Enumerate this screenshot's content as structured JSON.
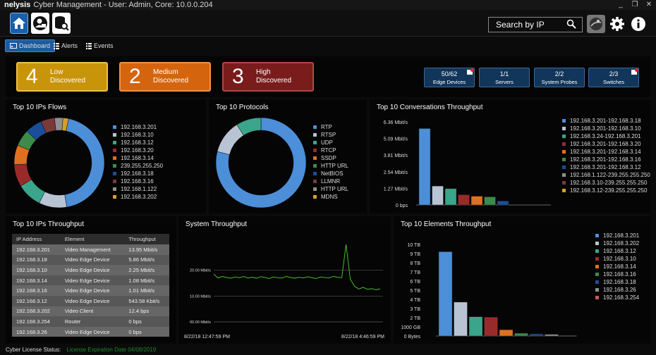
{
  "app": {
    "logo": "nelysis",
    "title": "Cyber Management - User: Admin, Core: 10.0.0.204",
    "win_min": "_",
    "win_max": "❐",
    "win_close": "✕"
  },
  "toolbar": {
    "search_label": "Search by IP",
    "icons": [
      "home-icon",
      "user-lock-icon",
      "database-search-icon",
      "map-icon",
      "gear-icon",
      "info-icon"
    ]
  },
  "tabs": [
    {
      "label": "Dashboard",
      "active": true
    },
    {
      "label": "Alerts",
      "active": false
    },
    {
      "label": "Events",
      "active": false
    }
  ],
  "severity": [
    {
      "count": "4",
      "line1": "Low",
      "line2": "Discovered",
      "color": "#c8940a"
    },
    {
      "count": "2",
      "line1": "Medium",
      "line2": "Discovered",
      "color": "#d4640e"
    },
    {
      "count": "3",
      "line1": "High",
      "line2": "Discovered",
      "color": "#7a1c1c"
    }
  ],
  "counters": [
    {
      "value": "50/62",
      "label": "Edge Devices",
      "alert": true
    },
    {
      "value": "1/1",
      "label": "Servers",
      "alert": false
    },
    {
      "value": "2/2",
      "label": "System Probes",
      "alert": false
    },
    {
      "value": "2/3",
      "label": "Switches",
      "alert": true
    }
  ],
  "panels": {
    "ip_flows": "Top 10 IPs Flows",
    "protocols": "Top 10 Protocols",
    "conversations": "Top 10 Conversations Throughput",
    "ips_throughput": "Top 10 IPs Throughput",
    "system_throughput": "System Throughput",
    "elements": "Top 10 Elements Throughput"
  },
  "ip_flows": {
    "labels": [
      "192.168.3.201",
      "192.168.3.10",
      "192.168.3.12",
      "192.168.3.20",
      "192.168.3.14",
      "239.255.255.250",
      "192.168.3.18",
      "192.168.3.16",
      "192.168.1.122",
      "192.168.3.202"
    ],
    "values": [
      44,
      10,
      9,
      8,
      7,
      6,
      6,
      5,
      3,
      2
    ],
    "colors": [
      "#4c8fd8",
      "#b8c4d4",
      "#3aa58a",
      "#9a2a2a",
      "#e07020",
      "#3e8a4a",
      "#1a4e9a",
      "#7a3a3a",
      "#909090",
      "#d8a020"
    ]
  },
  "protocols": {
    "labels": [
      "RTP",
      "RTSP",
      "UDP",
      "RTCP",
      "SSDP",
      "HTTP URL",
      "NetBIOS",
      "LLMNR",
      "HTTP URL",
      "MDNS"
    ],
    "values": [
      79,
      12,
      9,
      0,
      0,
      0,
      0,
      0,
      0,
      0
    ],
    "colors": [
      "#4c8fd8",
      "#b8c4d4",
      "#3aa58a",
      "#9a2a2a",
      "#e07020",
      "#3e8a4a",
      "#1a4e9a",
      "#7a3a3a",
      "#909090",
      "#d8a020"
    ]
  },
  "conversations": {
    "y_ticks": [
      "0 bps",
      "1.27 Mbit/s",
      "2.54 Mbit/s",
      "3.81 Mbit/s",
      "5.09 Mbit/s",
      "6.36 Mbit/s"
    ],
    "y_max": 6.36,
    "labels": [
      "192.168.3.201-192.168.3.18",
      "192.168.3.201-192.168.3.10",
      "192.168.3.24-192.168.3.201",
      "192.168.3.201-192.168.3.20",
      "192.168.3.201-192.168.3.14",
      "192.168.3.201-192.168.3.16",
      "192.168.3.201-192.168.3.12",
      "192.168.1.122-239.255.255.250",
      "192.168.3.10-239.255.255.250",
      "192.168.3.12-239.255.255.250"
    ],
    "values": [
      5.85,
      1.45,
      1.25,
      0.78,
      0.67,
      0.62,
      0.3,
      0,
      0,
      0
    ],
    "colors": [
      "#4c8fd8",
      "#b8c4d4",
      "#3aa58a",
      "#9a2a2a",
      "#e07020",
      "#3e8a4a",
      "#1a4e9a",
      "#909090",
      "#7a3a3a",
      "#d8a020"
    ]
  },
  "ip_table": {
    "headers": [
      "IP Address",
      "Element",
      "Throughput"
    ],
    "rows": [
      [
        "192.168.3.201",
        "Video Management",
        "13.95 Mbit/s"
      ],
      [
        "192.168.3.18",
        "Video Edge Device",
        "5.86 Mbit/s"
      ],
      [
        "192.168.3.10",
        "Video Edge Device",
        "2.25 Mbit/s"
      ],
      [
        "192.168.3.14",
        "Video Edge Device",
        "1.08 Mbit/s"
      ],
      [
        "192.168.3.16",
        "Video Edge Device",
        "1.01 Mbit/s"
      ],
      [
        "192.168.3.12",
        "Video Edge Device",
        "543.58 Kbit/s"
      ],
      [
        "192.168.3.202",
        "Video Client",
        "12.4 bps"
      ],
      [
        "192.168.3.254",
        "Router",
        "0 bps"
      ],
      [
        "192.168.3.26",
        "Video Edge Device",
        "0 bps"
      ]
    ]
  },
  "system_throughput": {
    "y_ticks": [
      "00.00 Mbit/s",
      "10.00 Mbit/s",
      "20.00 Mbit/s"
    ],
    "y_max": 30,
    "x_start": "8/22/18 12:47:59 PM",
    "x_end": "8/22/18 4:46:59 PM",
    "line_color": "#4ad22a"
  },
  "elements": {
    "y_ticks": [
      "0 Bytes",
      "1000 GB",
      "2 TB",
      "3 TB",
      "4 TB",
      "5 TB",
      "6 TB",
      "7 TB",
      "8 TB",
      "9 TB",
      "10 TB"
    ],
    "y_max": 10,
    "labels": [
      "192.168.3.201",
      "192.168.3.202",
      "192.168.3.12",
      "192.168.3.10",
      "192.168.3.14",
      "192.168.3.16",
      "192.168.3.18",
      "192.168.3.26",
      "192.168.3.254"
    ],
    "values": [
      9.2,
      3.7,
      2.1,
      2.05,
      0.68,
      0.3,
      0.22,
      0.18,
      0
    ],
    "colors": [
      "#4c8fd8",
      "#b8c4d4",
      "#3aa58a",
      "#9a2a2a",
      "#e07020",
      "#3e8a4a",
      "#1a4e9a",
      "#909090",
      "#c05a5a"
    ]
  },
  "status": {
    "label": "Cyber License Status:",
    "value": "License Expiration Date 04/08/2019"
  },
  "chart_data": [
    {
      "type": "pie",
      "title": "Top 10 IPs Flows",
      "categories": [
        "192.168.3.201",
        "192.168.3.10",
        "192.168.3.12",
        "192.168.3.20",
        "192.168.3.14",
        "239.255.255.250",
        "192.168.3.18",
        "192.168.3.16",
        "192.168.1.122",
        "192.168.3.202"
      ],
      "values": [
        44,
        10,
        9,
        8,
        7,
        6,
        6,
        5,
        3,
        2
      ]
    },
    {
      "type": "pie",
      "title": "Top 10 Protocols",
      "categories": [
        "RTP",
        "RTSP",
        "UDP",
        "RTCP",
        "SSDP",
        "HTTP URL",
        "NetBIOS",
        "LLMNR",
        "HTTP URL",
        "MDNS"
      ],
      "values": [
        79,
        12,
        9,
        0,
        0,
        0,
        0,
        0,
        0,
        0
      ]
    },
    {
      "type": "bar",
      "title": "Top 10 Conversations Throughput",
      "categories": [
        "192.168.3.201-192.168.3.18",
        "192.168.3.201-192.168.3.10",
        "192.168.3.24-192.168.3.201",
        "192.168.3.201-192.168.3.20",
        "192.168.3.201-192.168.3.14",
        "192.168.3.201-192.168.3.16",
        "192.168.3.201-192.168.3.12",
        "192.168.1.122-239.255.255.250",
        "192.168.3.10-239.255.255.250",
        "192.168.3.12-239.255.255.250"
      ],
      "values": [
        5.85,
        1.45,
        1.25,
        0.78,
        0.67,
        0.62,
        0.3,
        0,
        0,
        0
      ],
      "ylim": [
        0,
        6.36
      ]
    },
    {
      "type": "line",
      "title": "System Throughput",
      "x": [
        "8/22/18 12:47:59 PM",
        "",
        "",
        "",
        "",
        "",
        "",
        "",
        "",
        "",
        "",
        "",
        "",
        "",
        "",
        "",
        "",
        "",
        "",
        "",
        "",
        "",
        "",
        "",
        "",
        "",
        "",
        "",
        "",
        "",
        "",
        "",
        "",
        "",
        "",
        "",
        "",
        "",
        "",
        "8/22/18 4:46:59 PM"
      ],
      "values": [
        18.5,
        17.0,
        17.6,
        17.2,
        16.9,
        17.4,
        17.1,
        17.6,
        17.0,
        17.3,
        16.9,
        17.5,
        17.2,
        16.8,
        17.4,
        17.1,
        17.0,
        17.6,
        17.2,
        16.9,
        17.3,
        17.0,
        17.5,
        17.1,
        16.8,
        17.4,
        17.2,
        17.0,
        17.6,
        17.3,
        17.1,
        30.0,
        16.5,
        13.8,
        12.7,
        13.4,
        12.6,
        12.9,
        12.4,
        12.8
      ],
      "ylim": [
        0,
        30
      ]
    },
    {
      "type": "bar",
      "title": "Top 10 Elements Throughput",
      "categories": [
        "192.168.3.201",
        "192.168.3.202",
        "192.168.3.12",
        "192.168.3.10",
        "192.168.3.14",
        "192.168.3.16",
        "192.168.3.18",
        "192.168.3.26",
        "192.168.3.254"
      ],
      "values": [
        9.2,
        3.7,
        2.1,
        2.05,
        0.68,
        0.3,
        0.22,
        0.18,
        0
      ],
      "ylim": [
        0,
        10
      ]
    }
  ]
}
